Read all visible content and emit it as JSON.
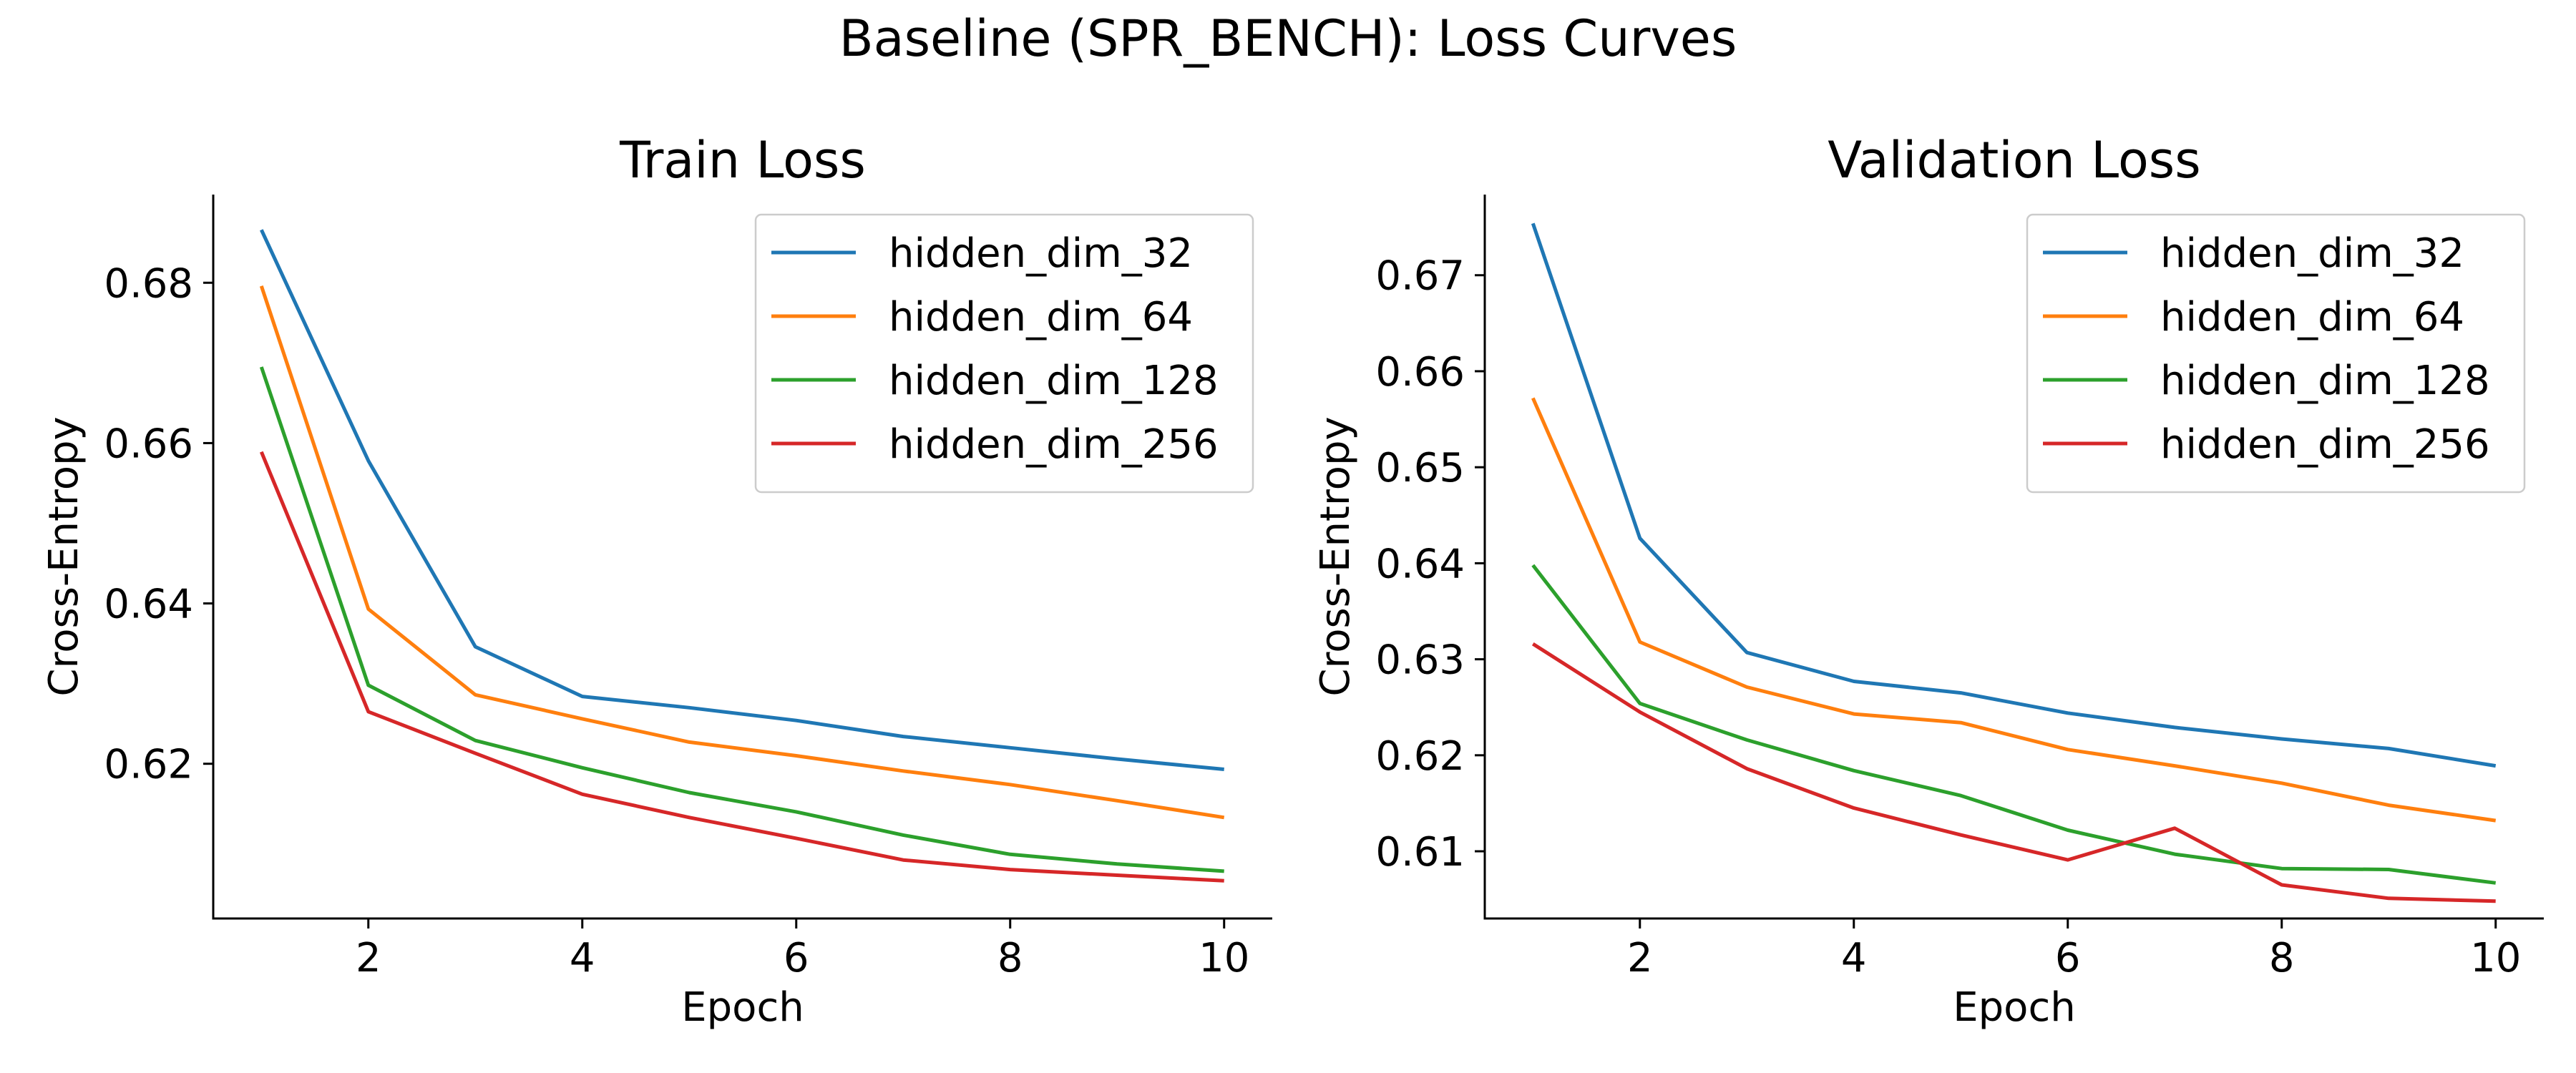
{
  "figure": {
    "suptitle": "Baseline (SPR_BENCH): Loss Curves"
  },
  "chart_data": [
    {
      "type": "line",
      "title": "Train Loss",
      "xlabel": "Epoch",
      "ylabel": "Cross-Entropy",
      "x": [
        1,
        2,
        3,
        4,
        5,
        6,
        7,
        8,
        9,
        10
      ],
      "xlim": [
        0.55,
        10.45
      ],
      "ylim": [
        0.6007,
        0.691
      ],
      "xticks": [
        2,
        4,
        6,
        8,
        10
      ],
      "yticks": [
        0.62,
        0.64,
        0.66,
        0.68
      ],
      "xtick_labels": [
        "2",
        "4",
        "6",
        "8",
        "10"
      ],
      "ytick_labels": [
        "0.62",
        "0.64",
        "0.66",
        "0.68"
      ],
      "grid": false,
      "legend_position": "top-right",
      "series": [
        {
          "name": "hidden_dim_32",
          "color": "#1f77b4",
          "values": [
            0.6866,
            0.6578,
            0.6346,
            0.6284,
            0.627,
            0.6254,
            0.6234,
            0.622,
            0.6206,
            0.6193
          ]
        },
        {
          "name": "hidden_dim_64",
          "color": "#ff7f0e",
          "values": [
            0.6796,
            0.6393,
            0.6286,
            0.6256,
            0.6227,
            0.621,
            0.6191,
            0.6174,
            0.6154,
            0.6133
          ]
        },
        {
          "name": "hidden_dim_128",
          "color": "#2ca02c",
          "values": [
            0.6695,
            0.6298,
            0.6229,
            0.6195,
            0.6164,
            0.614,
            0.6111,
            0.6087,
            0.6075,
            0.6066
          ]
        },
        {
          "name": "hidden_dim_256",
          "color": "#d62728",
          "values": [
            0.6589,
            0.6265,
            0.6213,
            0.6162,
            0.6133,
            0.6107,
            0.608,
            0.6068,
            0.6061,
            0.6054
          ]
        }
      ]
    },
    {
      "type": "line",
      "title": "Validation Loss",
      "xlabel": "Epoch",
      "ylabel": "Cross-Entropy",
      "x": [
        1,
        2,
        3,
        4,
        5,
        6,
        7,
        8,
        9,
        10
      ],
      "xlim": [
        0.55,
        10.45
      ],
      "ylim": [
        0.603,
        0.6784
      ],
      "xticks": [
        2,
        4,
        6,
        8,
        10
      ],
      "yticks": [
        0.61,
        0.62,
        0.63,
        0.64,
        0.65,
        0.66,
        0.67
      ],
      "xtick_labels": [
        "2",
        "4",
        "6",
        "8",
        "10"
      ],
      "ytick_labels": [
        "0.61",
        "0.62",
        "0.63",
        "0.64",
        "0.65",
        "0.66",
        "0.67"
      ],
      "grid": false,
      "legend_position": "top-right",
      "series": [
        {
          "name": "hidden_dim_32",
          "color": "#1f77b4",
          "values": [
            0.6754,
            0.6426,
            0.6307,
            0.6277,
            0.6265,
            0.6244,
            0.6229,
            0.6217,
            0.6207,
            0.6189
          ]
        },
        {
          "name": "hidden_dim_64",
          "color": "#ff7f0e",
          "values": [
            0.6572,
            0.6318,
            0.6271,
            0.6243,
            0.6234,
            0.6206,
            0.6189,
            0.6171,
            0.6148,
            0.6132
          ]
        },
        {
          "name": "hidden_dim_128",
          "color": "#2ca02c",
          "values": [
            0.6398,
            0.6254,
            0.6216,
            0.6184,
            0.6158,
            0.6122,
            0.6097,
            0.6082,
            0.6081,
            0.6067
          ]
        },
        {
          "name": "hidden_dim_256",
          "color": "#d62728",
          "values": [
            0.6316,
            0.6245,
            0.6186,
            0.6145,
            0.6117,
            0.6091,
            0.6124,
            0.6065,
            0.6051,
            0.6048
          ]
        }
      ]
    }
  ]
}
